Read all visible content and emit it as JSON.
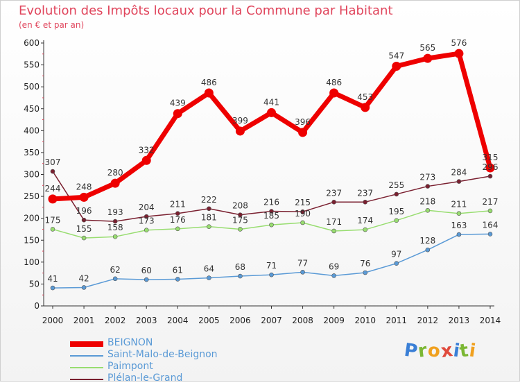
{
  "header": {
    "title": "Evolution des Impôts locaux pour la Commune par Habitant",
    "subtitle": "(en € et par an)"
  },
  "logo": {
    "letters": [
      "P",
      "r",
      "o",
      "x",
      "i",
      "t",
      "i"
    ],
    "colors": [
      "#3a7fd6",
      "#7bb734",
      "#f0a01e",
      "#e04a3c",
      "#3a7fd6",
      "#7bb734",
      "#f0a01e"
    ]
  },
  "chart_data": {
    "type": "line",
    "title": "Evolution des Impôts locaux pour la Commune par Habitant",
    "subtitle": "(en € et par an)",
    "xlabel": "",
    "ylabel": "",
    "ylim": [
      0,
      600
    ],
    "yticks": [
      0,
      50,
      100,
      150,
      200,
      250,
      300,
      350,
      400,
      450,
      500,
      550,
      600
    ],
    "grid": false,
    "legend_position": "bottom-left",
    "categories": [
      "2000",
      "2001",
      "2002",
      "2003",
      "2004",
      "2005",
      "2006",
      "2007",
      "2008",
      "2009",
      "2010",
      "2011",
      "2012",
      "2013",
      "2014"
    ],
    "series": [
      {
        "name": "BEIGNON",
        "color": "#ee0000",
        "values": [
          244,
          248,
          280,
          332,
          439,
          486,
          399,
          441,
          396,
          486,
          453,
          547,
          565,
          576,
          315
        ],
        "labels": [
          "244",
          "248",
          "280",
          "332",
          "439",
          "486",
          "399",
          "441",
          "396",
          "486",
          "453",
          "547",
          "565",
          "576",
          "315"
        ]
      },
      {
        "name": "Saint-Malo-de-Beignon",
        "color": "#5a9ad6",
        "values": [
          41,
          42,
          62,
          60,
          61,
          64,
          68,
          71,
          77,
          69,
          76,
          97,
          128,
          163,
          164
        ],
        "labels": [
          "41",
          "42",
          "62",
          "60",
          "61",
          "64",
          "68",
          "71",
          "77",
          "69",
          "76",
          "97",
          "128",
          "163",
          "164"
        ]
      },
      {
        "name": "Paimpont",
        "color": "#98dd70",
        "values": [
          175,
          155,
          158,
          173,
          176,
          181,
          175,
          185,
          190,
          171,
          174,
          195,
          218,
          211,
          217
        ],
        "labels": [
          "175",
          "155",
          "158",
          "173",
          "176",
          "181",
          "175",
          "185",
          "190",
          "171",
          "174",
          "195",
          "218",
          "211",
          "217"
        ]
      },
      {
        "name": "Plélan-le-Grand",
        "color": "#7a2030",
        "values": [
          307,
          196,
          193,
          204,
          211,
          222,
          208,
          216,
          215,
          237,
          237,
          255,
          273,
          284,
          296
        ],
        "labels": [
          "307",
          "196",
          "193",
          "204",
          "211",
          "222",
          "208",
          "216",
          "215",
          "237",
          "237",
          "255",
          "273",
          "284",
          "296"
        ]
      }
    ]
  }
}
